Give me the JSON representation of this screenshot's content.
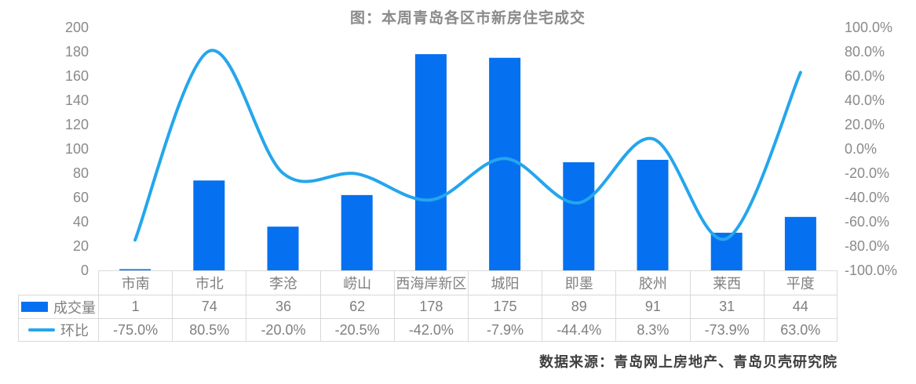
{
  "chart_data": {
    "type": "bar",
    "subtype": "combo-bar-line",
    "title": "图：本周青岛各区市新房住宅成交",
    "categories": [
      "市南",
      "市北",
      "李沧",
      "崂山",
      "西海岸新区",
      "城阳",
      "即墨",
      "胶州",
      "莱西",
      "平度"
    ],
    "series": [
      {
        "name": "成交量",
        "type": "bar",
        "axis": "left",
        "values": [
          1,
          74,
          36,
          62,
          178,
          175,
          89,
          91,
          31,
          44
        ]
      },
      {
        "name": "环比",
        "type": "line",
        "axis": "right",
        "values": [
          -75.0,
          80.5,
          -20.0,
          -20.5,
          -42.0,
          -7.9,
          -44.4,
          8.3,
          -73.9,
          63.0
        ],
        "labels": [
          "-75.0%",
          "80.5%",
          "-20.0%",
          "-20.5%",
          "-42.0%",
          "-7.9%",
          "-44.4%",
          "8.3%",
          "-73.9%",
          "63.0%"
        ]
      }
    ],
    "left_axis": {
      "min": 0,
      "max": 200,
      "step": 20
    },
    "right_axis": {
      "min": -100,
      "max": 100,
      "step": 20,
      "suffix": "%",
      "decimals": 1
    },
    "grid": false,
    "legend_position": "data-table-left",
    "data_table_visible": true
  },
  "source_note": "数据来源：青岛网上房地产、青岛贝壳研究院",
  "colors": {
    "bar": "#0671f0",
    "line": "#24a6ec",
    "axis_text": "#8a8a8a",
    "table_text": "#7f7f7f",
    "table_border": "#d9d9d9",
    "title_text": "#8a8a8a",
    "source_text": "#3f3f3f",
    "background": "#ffffff"
  }
}
